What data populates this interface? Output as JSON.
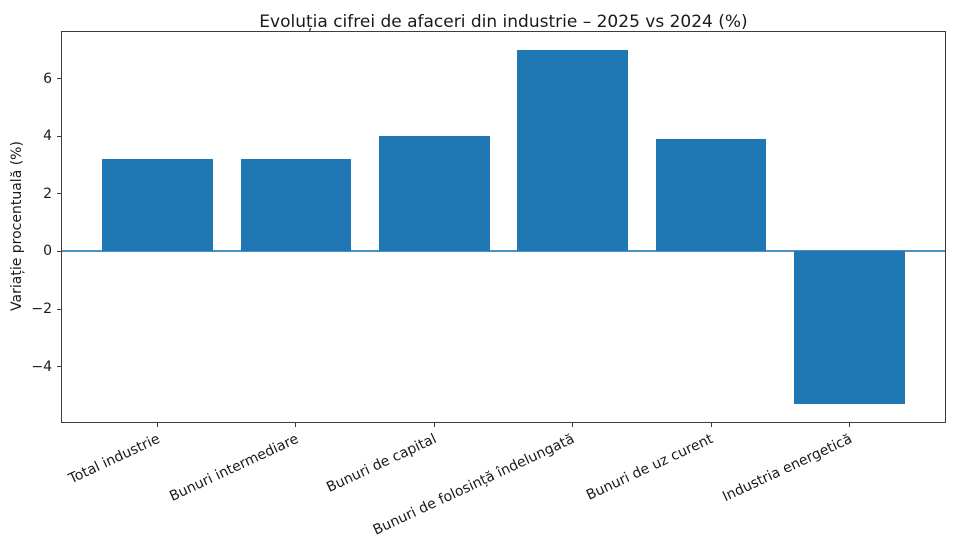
{
  "chart_data": {
    "type": "bar",
    "title": "Evoluția cifrei de afaceri din industrie – 2025 vs 2024 (%)",
    "xlabel": "",
    "ylabel": "Variație procentuală (%)",
    "categories": [
      "Total industrie",
      "Bunuri intermediare",
      "Bunuri de capital",
      "Bunuri de folosință îndelungată",
      "Bunuri de uz curent",
      "Industria energetică"
    ],
    "values": [
      3.2,
      3.2,
      4.0,
      7.0,
      3.9,
      -5.3
    ],
    "yticks": [
      -4,
      -2,
      0,
      2,
      4,
      6
    ],
    "ytick_labels": [
      "−4",
      "−2",
      "0",
      "2",
      "4",
      "6"
    ],
    "ylim": [
      -5.92,
      7.62
    ],
    "xlim": [
      -0.69,
      5.69
    ],
    "bar_width": 0.8,
    "bar_color": "#1f77b4",
    "zero_line": true,
    "zero_line_color": "#4a90c2",
    "grid": false,
    "legend": "none",
    "x_tick_rotation_deg": 25
  }
}
